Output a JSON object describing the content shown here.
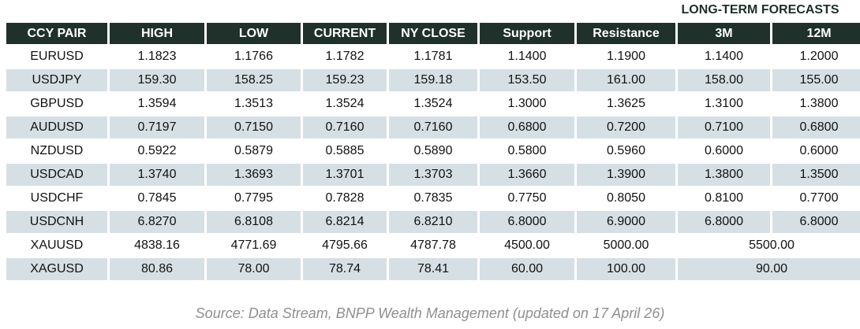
{
  "title": "LONG-TERM FORECASTS",
  "source": "Source: Data Stream, BNPP Wealth Management (updated on 17 April 26)",
  "colors": {
    "header_bg": "#20312c",
    "header_text": "#ffffff",
    "row_alt_bg": "#d6dfe4",
    "title_text": "#1d2f2a",
    "source_text": "#8f8f8f"
  },
  "table": {
    "columns": [
      "CCY PAIR",
      "HIGH",
      "LOW",
      "CURRENT",
      "NY CLOSE",
      "Support",
      "Resistance",
      "3M",
      "12M"
    ],
    "rows": [
      {
        "pair": "EURUSD",
        "high": "1.1823",
        "low": "1.1766",
        "current": "1.1782",
        "ny_close": "1.1781",
        "support": "1.1400",
        "resistance": "1.1900",
        "m3": "1.1400",
        "m12": "1.2000"
      },
      {
        "pair": "USDJPY",
        "high": "159.30",
        "low": "158.25",
        "current": "159.23",
        "ny_close": "159.18",
        "support": "153.50",
        "resistance": "161.00",
        "m3": "158.00",
        "m12": "155.00"
      },
      {
        "pair": "GBPUSD",
        "high": "1.3594",
        "low": "1.3513",
        "current": "1.3524",
        "ny_close": "1.3524",
        "support": "1.3000",
        "resistance": "1.3625",
        "m3": "1.3100",
        "m12": "1.3800"
      },
      {
        "pair": "AUDUSD",
        "high": "0.7197",
        "low": "0.7150",
        "current": "0.7160",
        "ny_close": "0.7160",
        "support": "0.6800",
        "resistance": "0.7200",
        "m3": "0.7100",
        "m12": "0.6800"
      },
      {
        "pair": "NZDUSD",
        "high": "0.5922",
        "low": "0.5879",
        "current": "0.5885",
        "ny_close": "0.5890",
        "support": "0.5800",
        "resistance": "0.5960",
        "m3": "0.6000",
        "m12": "0.6000"
      },
      {
        "pair": "USDCAD",
        "high": "1.3740",
        "low": "1.3693",
        "current": "1.3701",
        "ny_close": "1.3703",
        "support": "1.3660",
        "resistance": "1.3900",
        "m3": "1.3800",
        "m12": "1.3500"
      },
      {
        "pair": "USDCHF",
        "high": "0.7845",
        "low": "0.7795",
        "current": "0.7828",
        "ny_close": "0.7835",
        "support": "0.7750",
        "resistance": "0.8050",
        "m3": "0.8100",
        "m12": "0.7700"
      },
      {
        "pair": "USDCNH",
        "high": "6.8270",
        "low": "6.8108",
        "current": "6.8214",
        "ny_close": "6.8210",
        "support": "6.8000",
        "resistance": "6.9000",
        "m3": "6.8000",
        "m12": "6.8000"
      },
      {
        "pair": "XAUUSD",
        "high": "4838.16",
        "low": "4771.69",
        "current": "4795.66",
        "ny_close": "4787.78",
        "support": "4500.00",
        "resistance": "5000.00",
        "forecast_merged": "5500.00"
      },
      {
        "pair": "XAGUSD",
        "high": "80.86",
        "low": "78.00",
        "current": "78.74",
        "ny_close": "78.41",
        "support": "60.00",
        "resistance": "100.00",
        "forecast_merged": "90.00"
      }
    ]
  }
}
